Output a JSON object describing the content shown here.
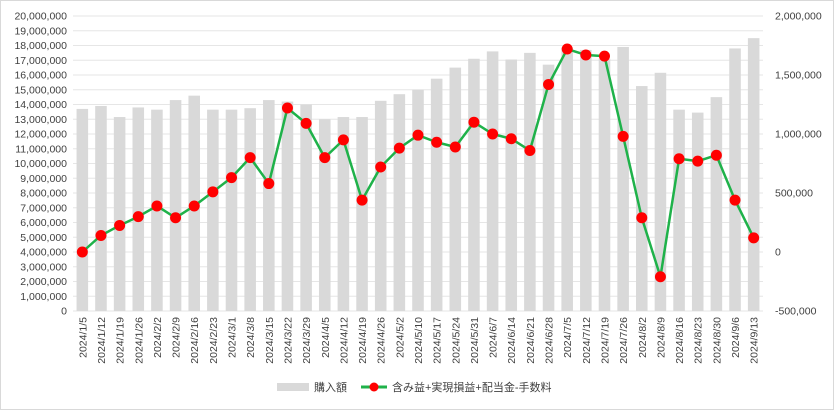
{
  "chart_data": {
    "type": "bar+line",
    "title": "",
    "grid": "horizontal",
    "legend_position": "bottom",
    "x": [
      "2024/1/5",
      "2024/1/12",
      "2024/1/19",
      "2024/1/26",
      "2024/2/2",
      "2024/2/9",
      "2024/2/16",
      "2024/2/23",
      "2024/3/1",
      "2024/3/8",
      "2024/3/15",
      "2024/3/22",
      "2024/3/29",
      "2024/4/5",
      "2024/4/12",
      "2024/4/19",
      "2024/4/26",
      "2024/5/2",
      "2024/5/10",
      "2024/5/17",
      "2024/5/24",
      "2024/5/31",
      "2024/6/7",
      "2024/6/14",
      "2024/6/21",
      "2024/6/28",
      "2024/7/5",
      "2024/7/12",
      "2024/7/19",
      "2024/7/26",
      "2024/8/2",
      "2024/8/9",
      "2024/8/16",
      "2024/8/23",
      "2024/8/30",
      "2024/9/6",
      "2024/9/13"
    ],
    "left_axis": {
      "ylim": [
        0,
        20000000
      ],
      "ticks": [
        "0",
        "1,000,000",
        "2,000,000",
        "3,000,000",
        "4,000,000",
        "5,000,000",
        "6,000,000",
        "7,000,000",
        "8,000,000",
        "9,000,000",
        "10,000,000",
        "11,000,000",
        "12,000,000",
        "13,000,000",
        "14,000,000",
        "15,000,000",
        "16,000,000",
        "17,000,000",
        "18,000,000",
        "19,000,000",
        "20,000,000"
      ]
    },
    "right_axis": {
      "ylim": [
        -500000,
        2000000
      ],
      "ticks": [
        "-500,000",
        "0",
        "500,000",
        "1,000,000",
        "1,500,000",
        "2,000,000"
      ]
    },
    "series": [
      {
        "name": "購入額",
        "kind": "bar",
        "axis": "left",
        "color": "#d9d9d9",
        "values": [
          13700000,
          13900000,
          13150000,
          13800000,
          13650000,
          14300000,
          14600000,
          13650000,
          13650000,
          13750000,
          14300000,
          14200000,
          14000000,
          13000000,
          13150000,
          13150000,
          14250000,
          14700000,
          15000000,
          15750000,
          16500000,
          17100000,
          17600000,
          17050000,
          17500000,
          16700000,
          17850000,
          17700000,
          17100000,
          17900000,
          15250000,
          16150000,
          13650000,
          13450000,
          14500000,
          17800000,
          18500000
        ]
      },
      {
        "name": "含み益+実現損益+配当金-手数料",
        "kind": "line",
        "axis": "right",
        "color": "#1fb24a",
        "marker_color": "#ff0000",
        "values": [
          0,
          140000,
          225000,
          300000,
          390000,
          290000,
          390000,
          510000,
          630000,
          800000,
          580000,
          1220000,
          1090000,
          800000,
          950000,
          440000,
          720000,
          880000,
          990000,
          930000,
          890000,
          1100000,
          1000000,
          960000,
          860000,
          1420000,
          1720000,
          1670000,
          1660000,
          980000,
          290000,
          -210000,
          790000,
          770000,
          820000,
          440000,
          120000
        ]
      }
    ]
  }
}
